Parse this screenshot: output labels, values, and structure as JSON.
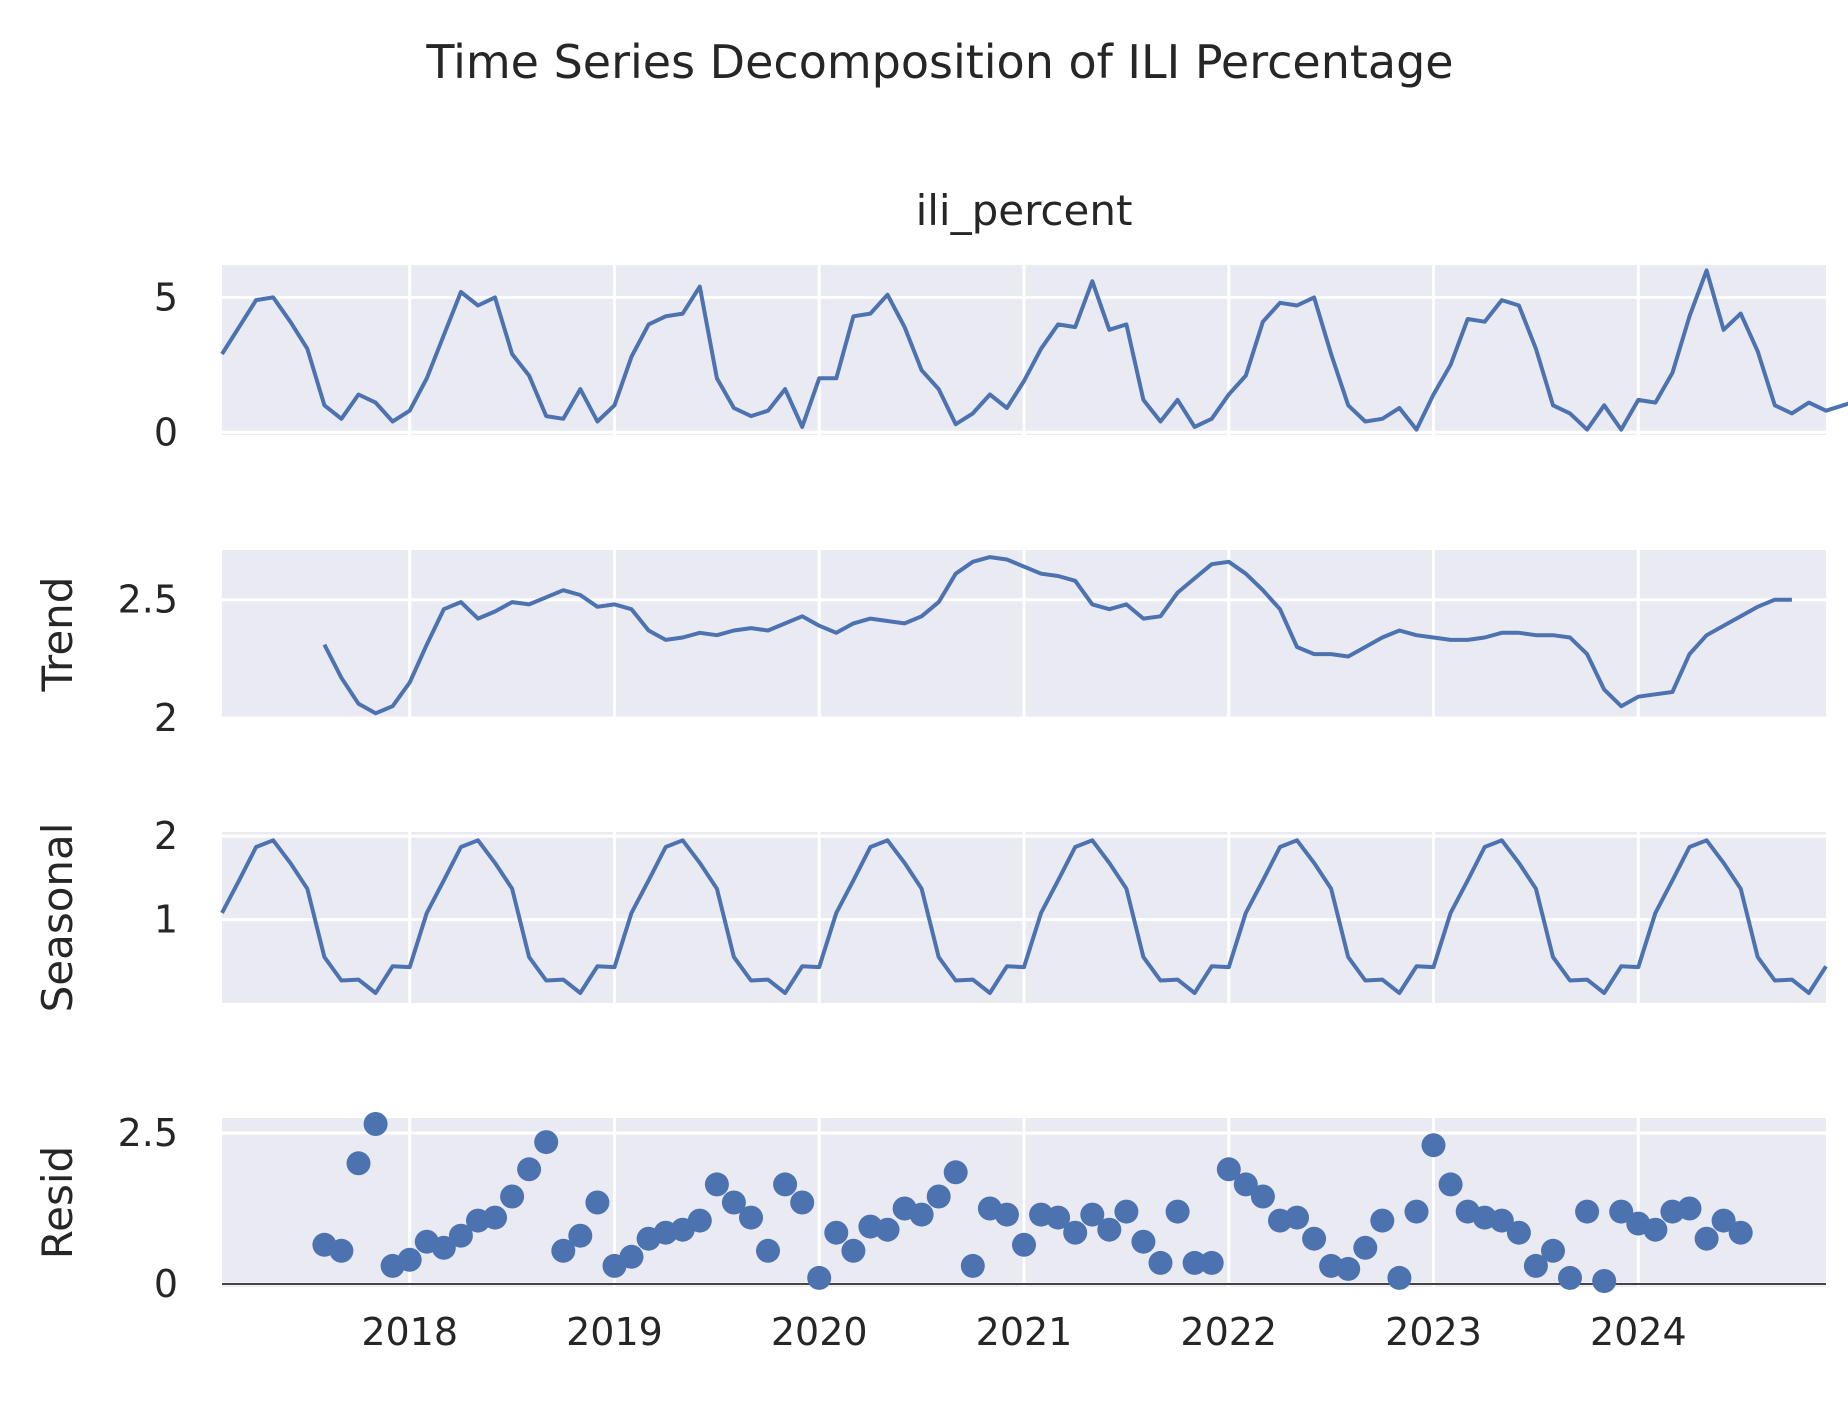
{
  "chart_data": {
    "type": "line",
    "title": "Time Series Decomposition of ILI Percentage",
    "x_ticks": [
      "2018",
      "2019",
      "2020",
      "2021",
      "2022",
      "2023",
      "2024"
    ],
    "x_range": [
      "2017-02",
      "2024-12"
    ],
    "colors": {
      "series": "#4c72b0",
      "panel": "#eaeaf2",
      "grid": "#ffffff"
    },
    "grid": true,
    "panels": [
      {
        "name": "observed",
        "subtitle": "ili_percent",
        "ylabel": "",
        "kind": "line",
        "ylim": [
          -0.1,
          6.2
        ],
        "y_ticks": [
          0,
          5
        ],
        "start": "2017-02",
        "values": [
          2.9,
          3.9,
          4.9,
          5.0,
          4.1,
          3.1,
          1.0,
          0.5,
          1.4,
          1.1,
          0.4,
          0.8,
          2.0,
          3.6,
          5.2,
          4.7,
          5.0,
          2.9,
          2.1,
          0.6,
          0.5,
          1.6,
          0.4,
          1.0,
          2.8,
          4.0,
          4.3,
          4.4,
          5.4,
          2.0,
          0.9,
          0.6,
          0.8,
          1.6,
          0.2,
          2.0,
          2.0,
          4.3,
          4.4,
          5.1,
          3.9,
          2.3,
          1.6,
          0.3,
          0.7,
          1.4,
          0.9,
          1.9,
          3.1,
          4.0,
          3.9,
          5.6,
          3.8,
          4.0,
          1.2,
          0.4,
          1.2,
          0.2,
          0.5,
          1.4,
          2.1,
          4.1,
          4.8,
          4.7,
          5.0,
          2.9,
          1.0,
          0.4,
          0.5,
          0.9,
          0.1,
          1.4,
          2.5,
          4.2,
          4.1,
          4.9,
          4.7,
          3.1,
          1.0,
          0.7,
          0.1,
          1.0,
          0.1,
          1.2,
          1.1,
          2.2,
          4.3,
          6.0,
          3.8,
          4.4,
          3.0,
          1.0,
          0.7,
          1.1,
          0.8,
          1.0,
          1.2
        ]
      },
      {
        "name": "trend",
        "subtitle": "",
        "ylabel": "Trend",
        "kind": "line",
        "ylim": [
          2.0,
          2.71
        ],
        "y_ticks": [
          2.0,
          2.5
        ],
        "start": "2017-08",
        "values": [
          2.31,
          2.17,
          2.06,
          2.02,
          2.05,
          2.15,
          2.31,
          2.46,
          2.49,
          2.42,
          2.45,
          2.49,
          2.48,
          2.51,
          2.54,
          2.52,
          2.47,
          2.48,
          2.46,
          2.37,
          2.33,
          2.34,
          2.36,
          2.35,
          2.37,
          2.38,
          2.37,
          2.4,
          2.43,
          2.39,
          2.36,
          2.4,
          2.42,
          2.41,
          2.4,
          2.43,
          2.49,
          2.61,
          2.66,
          2.68,
          2.67,
          2.64,
          2.61,
          2.6,
          2.58,
          2.48,
          2.46,
          2.48,
          2.42,
          2.43,
          2.53,
          2.59,
          2.65,
          2.66,
          2.61,
          2.54,
          2.46,
          2.3,
          2.27,
          2.27,
          2.26,
          2.3,
          2.34,
          2.37,
          2.35,
          2.34,
          2.33,
          2.33,
          2.34,
          2.36,
          2.36,
          2.35,
          2.35,
          2.34,
          2.27,
          2.12,
          2.05,
          2.09,
          2.1,
          2.11,
          2.27,
          2.35,
          2.39,
          2.43,
          2.47,
          2.5,
          2.5
        ]
      },
      {
        "name": "seasonal",
        "subtitle": "",
        "ylabel": "Seasonal",
        "kind": "line",
        "ylim": [
          0.0,
          2.05
        ],
        "y_ticks": [
          1,
          2
        ],
        "start": "2017-02",
        "pattern": [
          1.08,
          1.47,
          1.87,
          1.95,
          1.68,
          1.37,
          0.55,
          0.27,
          0.28,
          0.12,
          0.44,
          0.43
        ],
        "values": []
      },
      {
        "name": "resid",
        "subtitle": "",
        "ylabel": "Resid",
        "kind": "scatter",
        "ylim": [
          -0.05,
          2.75
        ],
        "y_ticks": [
          0.0,
          2.5
        ],
        "start": "2017-08",
        "values": [
          0.65,
          0.55,
          2.0,
          2.65,
          0.3,
          0.4,
          0.7,
          0.6,
          0.8,
          1.05,
          1.1,
          1.45,
          1.9,
          2.35,
          0.55,
          0.8,
          1.35,
          0.3,
          0.45,
          0.75,
          0.85,
          0.9,
          1.05,
          1.65,
          1.35,
          1.1,
          0.55,
          1.65,
          1.35,
          0.1,
          0.85,
          0.55,
          0.95,
          0.9,
          1.25,
          1.15,
          1.45,
          1.85,
          0.3,
          1.25,
          1.15,
          0.65,
          1.15,
          1.1,
          0.85,
          1.15,
          0.9,
          1.2,
          0.7,
          0.35,
          1.2,
          0.35,
          0.35,
          1.9,
          1.65,
          1.45,
          1.05,
          1.1,
          0.75,
          0.3,
          0.25,
          0.6,
          1.05,
          0.1,
          1.2,
          2.3,
          1.65,
          1.2,
          1.1,
          1.05,
          0.85,
          0.3,
          0.55,
          0.1,
          1.2,
          0.05,
          1.2,
          1.0,
          0.9,
          1.2,
          1.25,
          0.75,
          1.05,
          0.85
        ]
      }
    ]
  }
}
